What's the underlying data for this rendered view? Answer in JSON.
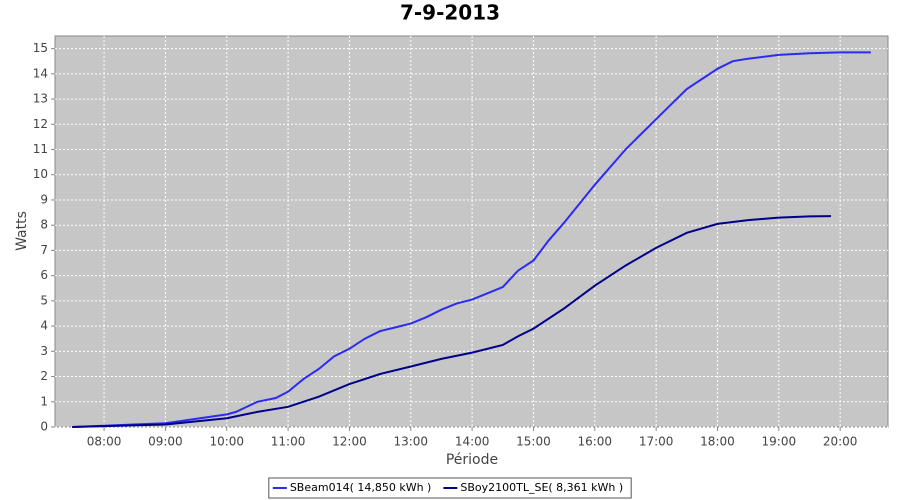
{
  "chart_data": {
    "type": "line",
    "title": "7-9-2013",
    "x_label": "Période",
    "y_label": "Watts",
    "xlim": [
      7.2,
      20.78
    ],
    "ylim": [
      0,
      15.5
    ],
    "xticks": [
      {
        "value": 8,
        "label": "08:00"
      },
      {
        "value": 9,
        "label": "09:00"
      },
      {
        "value": 10,
        "label": "10:00"
      },
      {
        "value": 11,
        "label": "11:00"
      },
      {
        "value": 12,
        "label": "12:00"
      },
      {
        "value": 13,
        "label": "13:00"
      },
      {
        "value": 14,
        "label": "14:00"
      },
      {
        "value": 15,
        "label": "15:00"
      },
      {
        "value": 16,
        "label": "16:00"
      },
      {
        "value": 17,
        "label": "17:00"
      },
      {
        "value": 18,
        "label": "18:00"
      },
      {
        "value": 19,
        "label": "19:00"
      },
      {
        "value": 20,
        "label": "20:00"
      }
    ],
    "yticks": [
      0,
      1,
      2,
      3,
      4,
      5,
      6,
      7,
      8,
      9,
      10,
      11,
      12,
      13,
      14,
      15
    ],
    "grid": true,
    "legend": "bottom",
    "series": [
      {
        "name": "SBeam014( 14,850 kWh )",
        "color": "#2b2bf5",
        "x": [
          7.48,
          9.0,
          10.0,
          10.15,
          10.5,
          10.8,
          11.0,
          11.25,
          11.5,
          11.75,
          12.0,
          12.25,
          12.5,
          12.75,
          13.0,
          13.25,
          13.5,
          13.75,
          14.0,
          14.25,
          14.5,
          14.75,
          15.0,
          15.25,
          15.5,
          16.0,
          16.5,
          17.0,
          17.5,
          18.0,
          18.25,
          18.5,
          19.0,
          19.5,
          20.0,
          20.5
        ],
        "values": [
          0,
          0.15,
          0.5,
          0.6,
          1.0,
          1.15,
          1.4,
          1.9,
          2.3,
          2.8,
          3.1,
          3.5,
          3.8,
          3.95,
          4.1,
          4.35,
          4.65,
          4.9,
          5.05,
          5.3,
          5.55,
          6.2,
          6.6,
          7.4,
          8.1,
          9.6,
          11.0,
          12.2,
          13.4,
          14.2,
          14.5,
          14.6,
          14.75,
          14.82,
          14.85,
          14.85
        ]
      },
      {
        "name": "SBoy2100TL_SE( 8,361 kWh )",
        "color": "#00008b",
        "x": [
          7.48,
          9.0,
          10.0,
          10.5,
          11.0,
          11.5,
          12.0,
          12.5,
          13.0,
          13.5,
          14.0,
          14.5,
          14.75,
          15.0,
          15.5,
          16.0,
          16.5,
          17.0,
          17.5,
          18.0,
          18.5,
          19.0,
          19.5,
          19.85
        ],
        "values": [
          0,
          0.1,
          0.35,
          0.6,
          0.8,
          1.2,
          1.7,
          2.1,
          2.4,
          2.7,
          2.95,
          3.25,
          3.6,
          3.9,
          4.7,
          5.6,
          6.4,
          7.1,
          7.7,
          8.05,
          8.2,
          8.3,
          8.35,
          8.36
        ]
      }
    ]
  }
}
